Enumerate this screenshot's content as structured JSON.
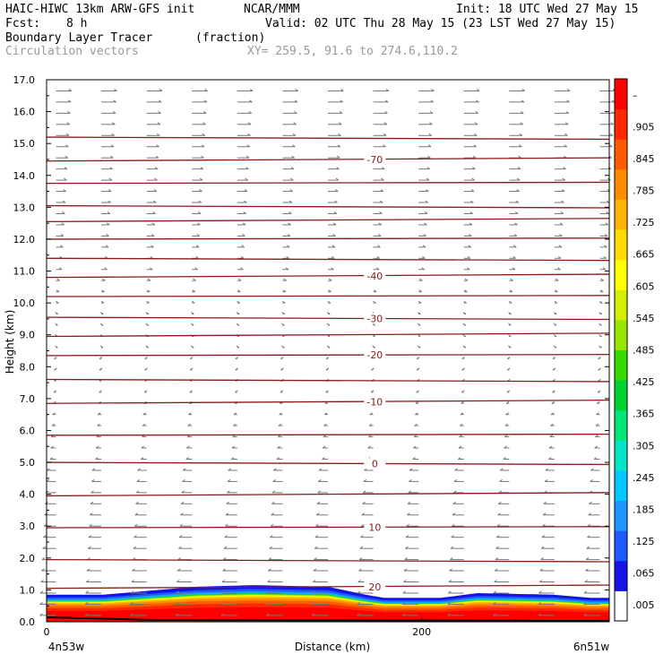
{
  "header": {
    "model": "HAIC-HIWC 13km ARW-GFS init",
    "org": "NCAR/MMM",
    "init": "Init: 18 UTC Wed 27 May 15",
    "fcst_label": "Fcst:",
    "fcst_value": "8 h",
    "valid": "Valid: 02 UTC Thu 28 May 15 (23 LST Wed 27 May 15)",
    "field": "Boundary Layer Tracer",
    "field_units": "(fraction)",
    "overlay": "Circulation vectors",
    "xy": "XY= 259.5, 91.6 to 274.6,110.2"
  },
  "chart_data": {
    "type": "heatmap",
    "xlabel": "Distance (km)",
    "ylabel": "Height (km)",
    "xlim": [
      0,
      300
    ],
    "ylim": [
      0,
      17
    ],
    "x_ticks": [
      {
        "value": 0,
        "label": "0"
      },
      {
        "value": 200,
        "label": "200"
      }
    ],
    "x_end_labels": {
      "left": "4n53w",
      "right": "6n51w"
    },
    "y_ticks": [
      "0.0",
      "1.0",
      "2.0",
      "3.0",
      "4.0",
      "5.0",
      "6.0",
      "7.0",
      "8.0",
      "9.0",
      "10.0",
      "11.0",
      "12.0",
      "13.0",
      "14.0",
      "15.0",
      "16.0",
      "17.0"
    ],
    "colorbar": {
      "labels": [
        ".005",
        ".065",
        ".125",
        ".185",
        ".245",
        ".305",
        ".365",
        ".425",
        ".485",
        ".545",
        ".605",
        ".665",
        ".725",
        ".785",
        ".845",
        ".905",
        "–"
      ],
      "colors": [
        "#ffffff",
        "#1414e6",
        "#1e5aff",
        "#1e96ff",
        "#00c8ff",
        "#00e6c8",
        "#00e678",
        "#00d232",
        "#32dc00",
        "#96e600",
        "#d2f000",
        "#ffff00",
        "#ffdc00",
        "#ffb400",
        "#ff8c00",
        "#ff5a00",
        "#ff2800",
        "#ff0000"
      ]
    },
    "tracer_layer": {
      "profile_x": [
        0,
        30,
        40,
        80,
        110,
        150,
        170,
        180,
        210,
        230,
        270,
        290,
        300
      ],
      "top_height": [
        0.85,
        0.85,
        0.9,
        1.1,
        1.15,
        1.1,
        0.85,
        0.75,
        0.75,
        0.9,
        0.85,
        0.75,
        0.75
      ]
    },
    "isotherms": [
      {
        "label": "20",
        "height": 1.05
      },
      {
        "label": "",
        "height": 1.95
      },
      {
        "label": "10",
        "height": 2.95
      },
      {
        "label": "",
        "height": 3.95
      },
      {
        "label": "0",
        "height": 5.0
      },
      {
        "label": "",
        "height": 5.85
      },
      {
        "label": "-10",
        "height": 6.85
      },
      {
        "label": "",
        "height": 7.6
      },
      {
        "label": "-20",
        "height": 8.35
      },
      {
        "label": "",
        "height": 8.95
      },
      {
        "label": "-30",
        "height": 9.55
      },
      {
        "label": "",
        "height": 10.2
      },
      {
        "label": "-40",
        "height": 10.8
      },
      {
        "label": "",
        "height": 11.4
      },
      {
        "label": "",
        "height": 12.0
      },
      {
        "label": "",
        "height": 12.55
      },
      {
        "label": "",
        "height": 13.05
      },
      {
        "label": "",
        "height": 13.75
      },
      {
        "label": "-70",
        "height": 14.45
      },
      {
        "label": "",
        "height": 15.2
      }
    ],
    "colors": {
      "isotherm": "#8b1a1a",
      "vector": "#777777",
      "label": "#8b1a1a"
    }
  }
}
